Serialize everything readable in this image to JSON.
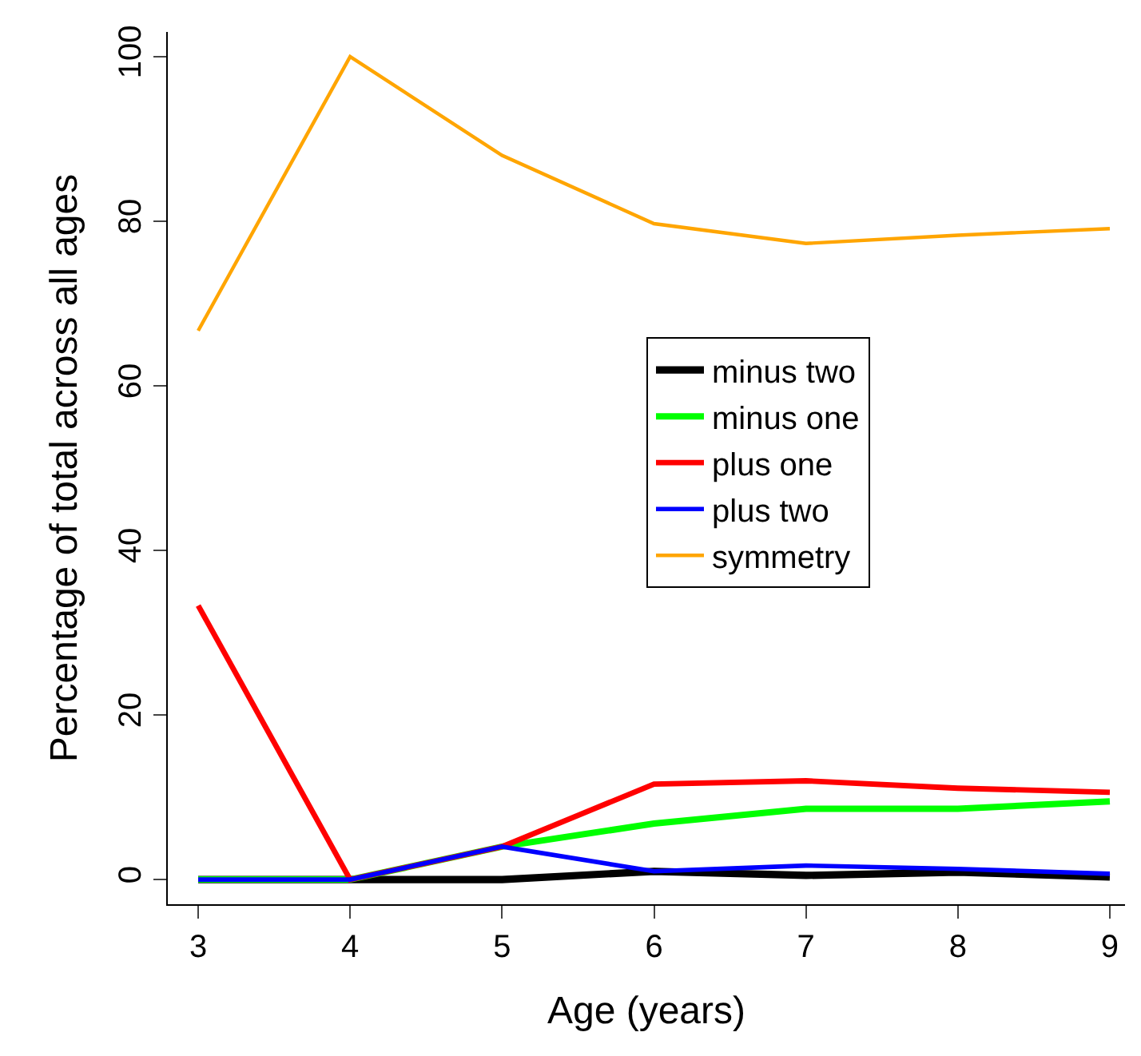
{
  "chart_data": {
    "type": "line",
    "xlabel": "Age (years)",
    "ylabel": "Percentage of total across all ages",
    "x": [
      3,
      4,
      5,
      6,
      7,
      8,
      9
    ],
    "series": [
      {
        "name": "minus two",
        "color": "#000000",
        "values": [
          0,
          0,
          0,
          1.0,
          0.5,
          0.9,
          0.3
        ]
      },
      {
        "name": "minus one",
        "color": "#00ff00",
        "values": [
          0,
          0,
          4.0,
          6.8,
          8.6,
          8.6,
          9.5
        ]
      },
      {
        "name": "plus one",
        "color": "#ff0000",
        "values": [
          33.3,
          0,
          4.0,
          11.6,
          12.0,
          11.1,
          10.6
        ]
      },
      {
        "name": "plus two",
        "color": "#0000ff",
        "values": [
          0,
          0,
          4.0,
          1.0,
          1.7,
          1.3,
          0.7
        ]
      },
      {
        "name": "symmetry",
        "color": "#ffa500",
        "values": [
          66.7,
          100,
          88,
          79.7,
          77.3,
          78.3,
          79.1
        ]
      }
    ],
    "xlim": [
      2.8,
      9.1
    ],
    "ylim": [
      -3,
      103
    ],
    "xticks": [
      3,
      4,
      5,
      6,
      7,
      8,
      9
    ],
    "yticks": [
      0,
      20,
      40,
      60,
      80,
      100
    ],
    "grid": false,
    "legend": "right",
    "marker": "none",
    "line_style": "solid"
  }
}
